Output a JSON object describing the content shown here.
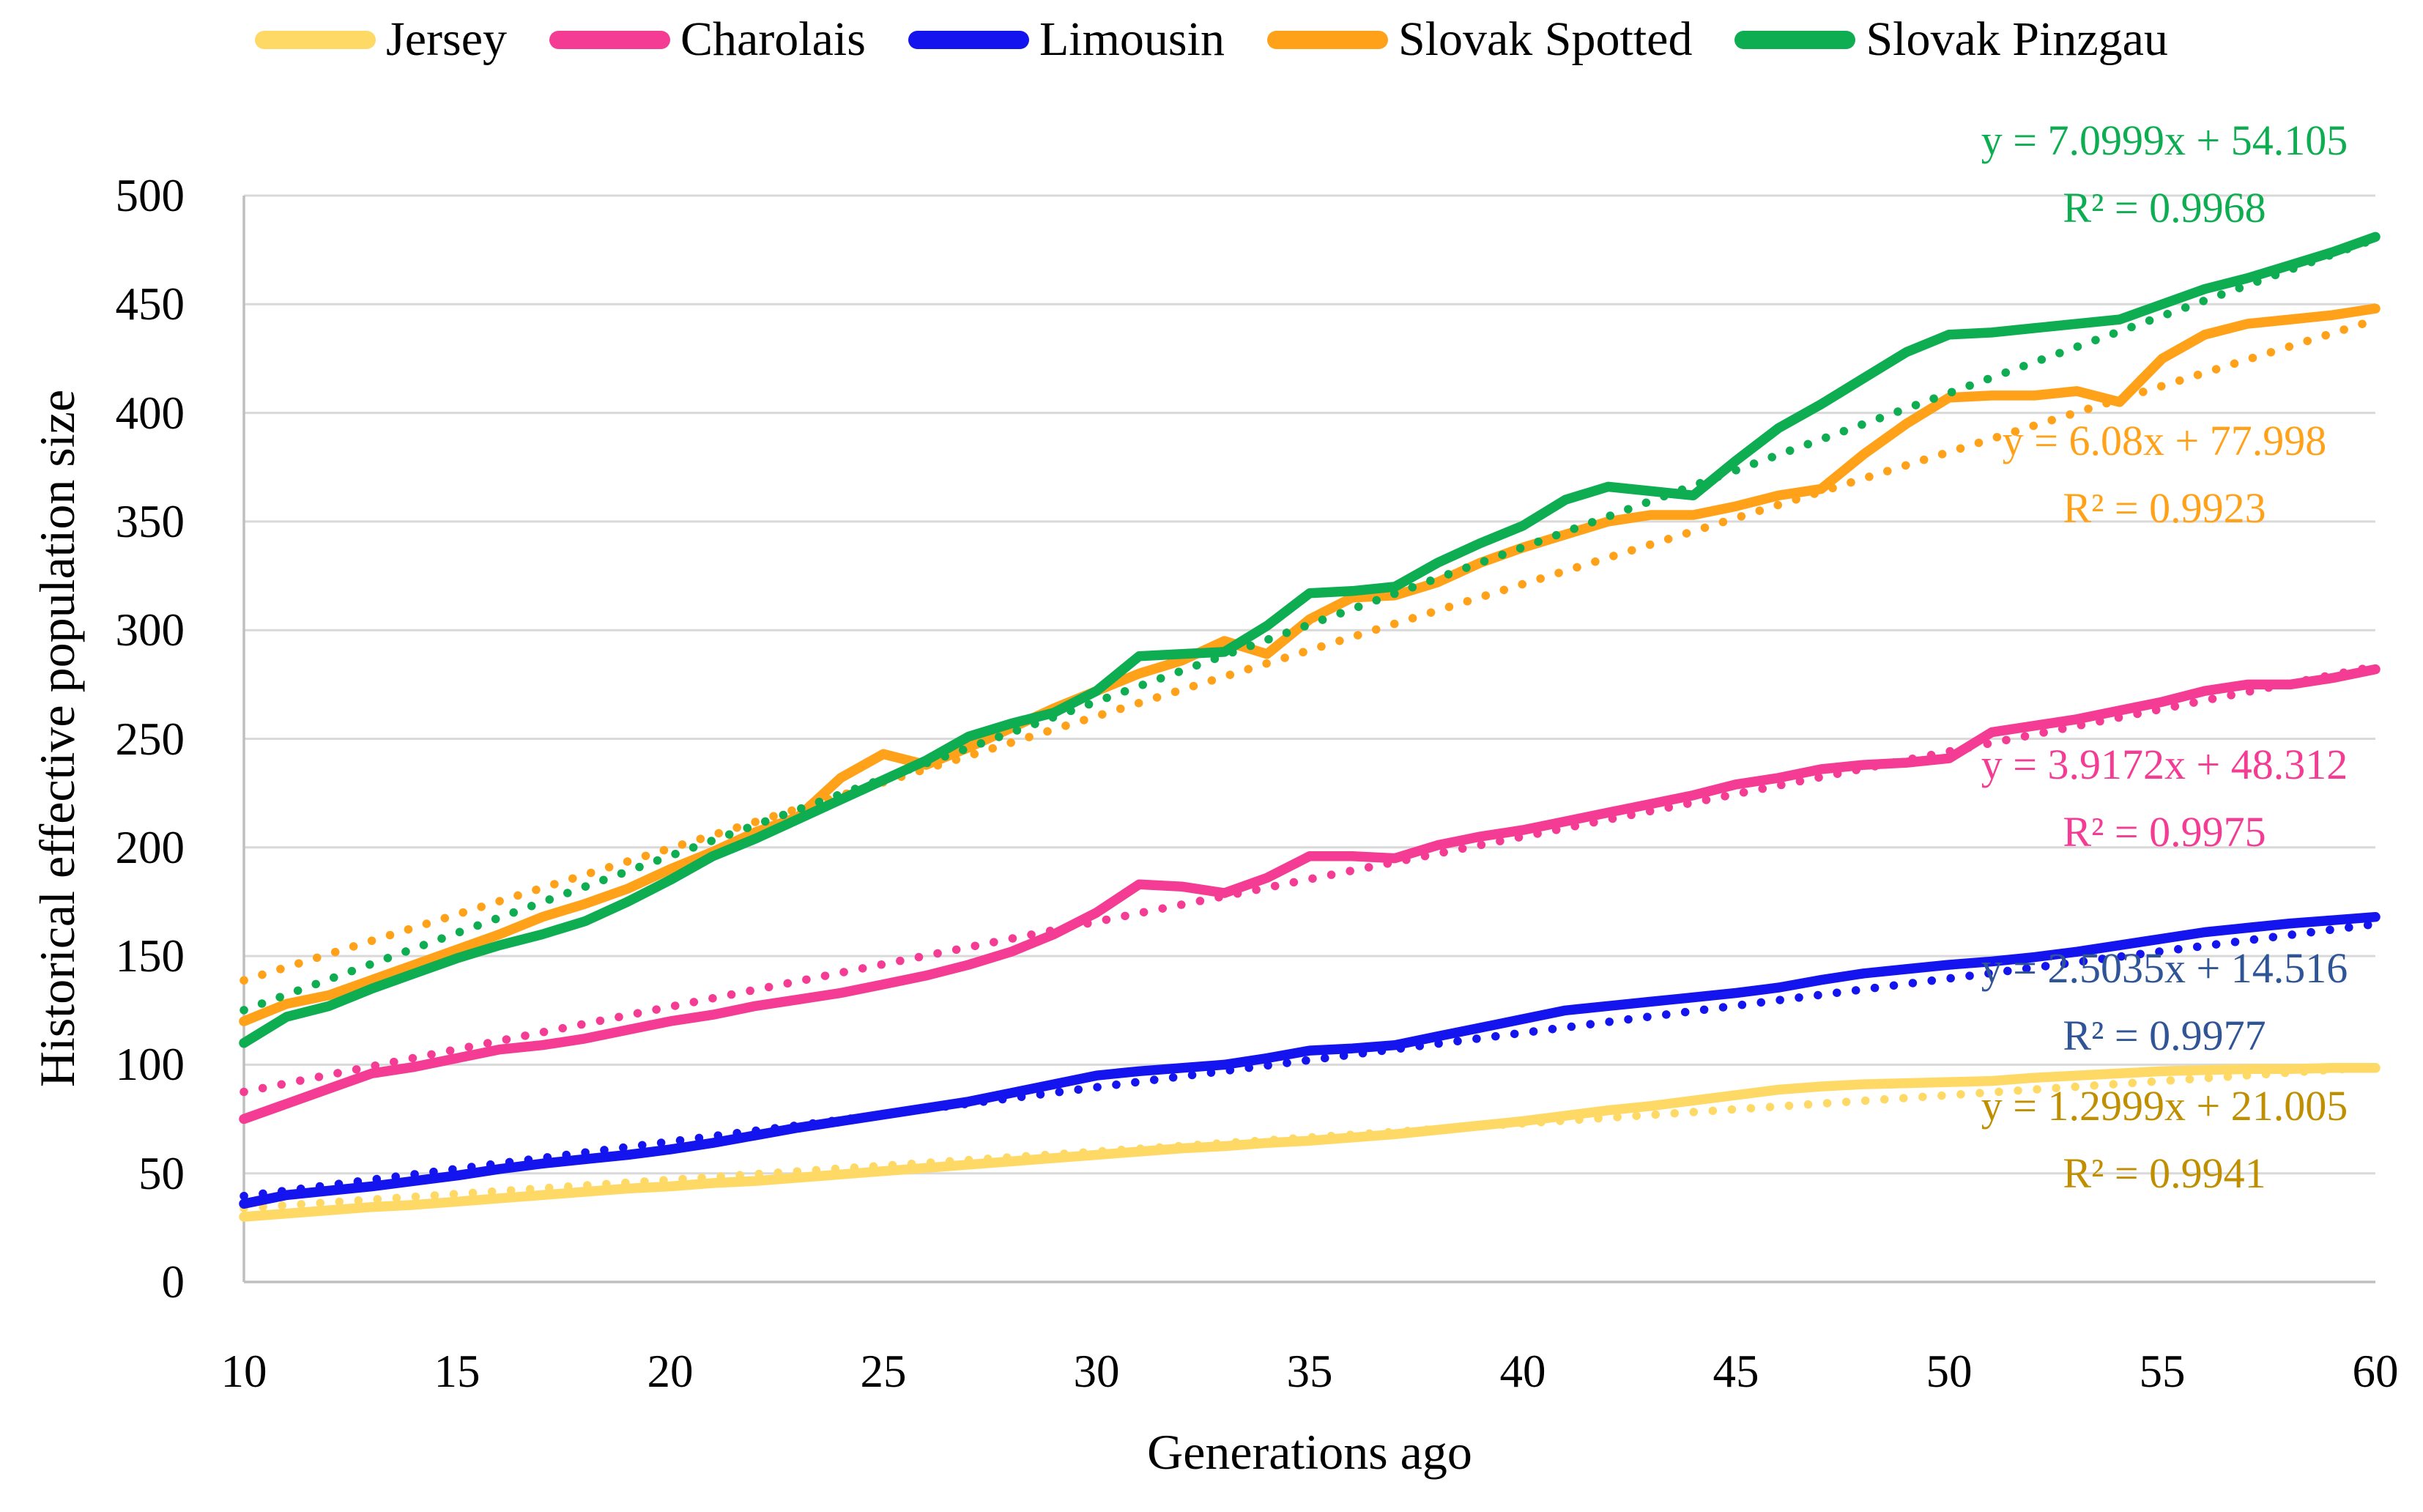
{
  "chart_data": {
    "type": "line",
    "title": "",
    "xlabel": "Generations ago",
    "ylabel": "Historical effective population size",
    "xlim": [
      10,
      60
    ],
    "ylim": [
      0,
      500
    ],
    "x_ticks": [
      10,
      15,
      20,
      25,
      30,
      35,
      40,
      45,
      50,
      55,
      60
    ],
    "y_ticks": [
      0,
      50,
      100,
      150,
      200,
      250,
      300,
      350,
      400,
      450,
      500
    ],
    "x_start": 10,
    "x_step": 1,
    "grid": "horizontal",
    "legend_position": "top",
    "series": [
      {
        "name": "Jersey",
        "color": "#FFD966",
        "values": [
          30,
          31.5,
          33,
          34.5,
          35.5,
          37,
          38.5,
          40,
          41.5,
          43,
          44,
          45.5,
          46.5,
          48,
          49.5,
          51,
          52.5,
          54,
          55.5,
          57,
          58.5,
          60,
          61.5,
          62.5,
          64,
          65,
          66.5,
          68,
          70,
          72,
          74,
          76.5,
          79,
          81,
          83.5,
          86,
          88.5,
          90,
          91,
          91.5,
          92,
          92.5,
          94,
          95,
          96,
          97,
          97.5,
          98,
          98,
          98.5,
          98.5
        ],
        "trendline": {
          "slope": 1.2999,
          "intercept": 21.005,
          "equation": "y = 1.2999x + 21.005",
          "r2": "R² = 0.9941",
          "label_color": "#BF8F00"
        }
      },
      {
        "name": "Charolais",
        "color": "#F43C94",
        "values": [
          75,
          82,
          89,
          96,
          99,
          103,
          107,
          109,
          112,
          116,
          120,
          123,
          127,
          130,
          133,
          137,
          141,
          146,
          152,
          160,
          170,
          183,
          182,
          179,
          186,
          196,
          196,
          195,
          201,
          205,
          208,
          212,
          216,
          220,
          224,
          229,
          232,
          236,
          238,
          239,
          241,
          253,
          256,
          259,
          263,
          267,
          272,
          275,
          275,
          278,
          282
        ],
        "trendline": {
          "slope": 3.9172,
          "intercept": 48.312,
          "equation": "y = 3.9172x + 48.312",
          "r2": "R² = 0.9975",
          "label_color": "#F43C94"
        }
      },
      {
        "name": "Limousin",
        "color": "#1414EE",
        "values": [
          36,
          40,
          42,
          44,
          46.5,
          49,
          52,
          54.5,
          56.5,
          58.5,
          61,
          64,
          67.5,
          71,
          74,
          77,
          80,
          83,
          87,
          91,
          95,
          97,
          98.5,
          100,
          103,
          106.5,
          107.5,
          109,
          113,
          117,
          121,
          125,
          127,
          129,
          131,
          133,
          135.5,
          139,
          142,
          144,
          146,
          147.5,
          149.5,
          152,
          155,
          158,
          161,
          163,
          165,
          166.5,
          168
        ],
        "trendline": {
          "slope": 2.5035,
          "intercept": 14.516,
          "equation": "y = 2.5035x + 14.516",
          "r2": "R² = 0.9977",
          "label_color": "#2F5597"
        }
      },
      {
        "name": "Slovak Spotted",
        "color": "#FFA219",
        "values": [
          120,
          128,
          132,
          139,
          146,
          153,
          160,
          168,
          174,
          181,
          190,
          198,
          207,
          214,
          232,
          243,
          238,
          246,
          255,
          264,
          272,
          280,
          286,
          295,
          289,
          305,
          315,
          316,
          322,
          331,
          338,
          344,
          350,
          353,
          353,
          357,
          362,
          365,
          381,
          395,
          407,
          408,
          408,
          410,
          405,
          425,
          436,
          441,
          443,
          445,
          448
        ],
        "trendline": {
          "slope": 6.08,
          "intercept": 77.998,
          "equation": "y = 6.08x + 77.998",
          "r2": "R² = 0.9923",
          "label_color": "#FFA219"
        }
      },
      {
        "name": "Slovak Pinzgau",
        "color": "#0EAD52",
        "values": [
          110,
          122,
          127,
          135,
          142,
          149,
          155,
          160,
          166,
          175,
          185,
          196,
          204,
          213,
          222,
          231,
          240,
          251,
          257,
          262,
          272,
          288,
          289,
          290,
          302,
          317,
          318,
          320,
          331,
          340,
          348,
          360,
          366,
          364,
          362,
          378,
          393,
          404,
          416,
          428,
          436,
          437,
          439,
          441,
          443,
          450,
          457,
          462,
          468,
          474,
          481
        ],
        "trendline": {
          "slope": 7.0999,
          "intercept": 54.105,
          "equation": "y = 7.0999x + 54.105",
          "r2": "R² = 0.9968",
          "label_color": "#0EAD52"
        }
      }
    ],
    "colors": {
      "background": "#FFFFFF",
      "gridline": "#D9D9D9",
      "axis_line": "#BFBFBF",
      "text": "#000000"
    }
  }
}
